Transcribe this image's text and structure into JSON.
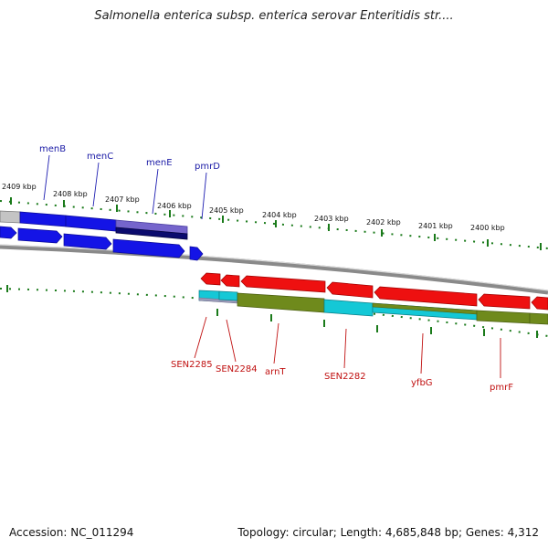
{
  "title": "Salmonella enterica subsp. enterica serovar Enteritidis str....",
  "footer": {
    "accession": "Accession: NC_011294",
    "summary": "Topology: circular; Length: 4,685,848 bp; Genes: 4,312"
  },
  "kbp_labels": [
    "2409 kbp",
    "2408 kbp",
    "2407 kbp",
    "2406 kbp",
    "2405 kbp",
    "2404 kbp",
    "2403 kbp",
    "2402 kbp",
    "2401 kbp",
    "2400 kbp"
  ],
  "top_genes": [
    "menB",
    "menC",
    "menE",
    "pmrD"
  ],
  "bottom_genes": [
    "SEN2285",
    "SEN2284",
    "arnT",
    "SEN2282",
    "yfbG",
    "pmrF"
  ],
  "colors": {
    "forward_cds": "#1010e0",
    "reverse_cds": "#ee1010",
    "dark_blue": "#0a0a70",
    "lavender": "#6f5fc8",
    "cyan": "#10c4d4",
    "olive": "#6e8a1c",
    "ticks": "#1a7a1a",
    "backbone": "#8a8a8a"
  }
}
